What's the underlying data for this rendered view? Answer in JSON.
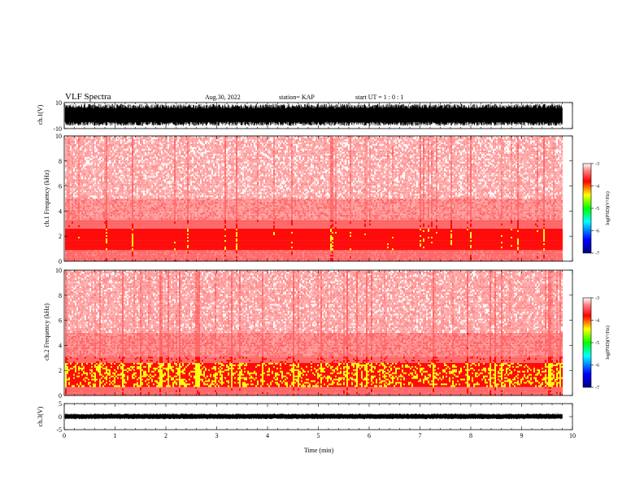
{
  "header": {
    "title": "VLF Spectra",
    "date": "Aug.30, 2022",
    "station": "station= KAP",
    "start": "start UT =  1 : 0 : 1"
  },
  "colors": {
    "low_power": "#0000ff",
    "mid_power": "#00ff00",
    "yellow": "#ffff00",
    "high_power": "#ff0000",
    "background": "#ffffff",
    "waveform": "#000000"
  },
  "chart_data": [
    {
      "type": "line",
      "panel": "ch1-waveform",
      "ylabel": "ch.1(V)",
      "ylim": [
        -10,
        10
      ],
      "yticks": [
        "10",
        "-10"
      ],
      "xlim": [
        0,
        10
      ],
      "trace_end": 9.8,
      "description_values": {
        "amplitude_envelope_V": [
          -8,
          9
        ]
      }
    },
    {
      "type": "heatmap",
      "panel": "ch1-spectrogram",
      "ylabel": "ch.1 Frequency (kHz)",
      "ylim": [
        0,
        10
      ],
      "yticks": [
        "0",
        "2",
        "4",
        "6",
        "8",
        "10"
      ],
      "xlim": [
        0,
        10
      ],
      "trace_end": 9.8,
      "intensity_bands_kHz": [
        {
          "from": 0.0,
          "to": 0.9,
          "level": 0.35
        },
        {
          "from": 0.9,
          "to": 2.6,
          "level": 0.75
        },
        {
          "from": 2.6,
          "to": 3.3,
          "level": 0.45
        },
        {
          "from": 3.3,
          "to": 5.0,
          "level": 0.22
        },
        {
          "from": 5.0,
          "to": 10.0,
          "level": 0.1
        }
      ],
      "colorbar": {
        "label": "log(PSD)(V²/Hz)",
        "ticks": [
          "-3",
          "-4",
          "-5",
          "-6",
          "-7"
        ],
        "range": [
          -7,
          -3
        ]
      }
    },
    {
      "type": "heatmap",
      "panel": "ch2-spectrogram",
      "ylabel": "ch.2 Frequency (kHz)",
      "ylim": [
        0,
        10
      ],
      "yticks": [
        "0",
        "2",
        "4",
        "6",
        "8",
        "10"
      ],
      "xlim": [
        0,
        10
      ],
      "trace_end": 9.8,
      "intensity_bands_kHz": [
        {
          "from": 0.0,
          "to": 0.7,
          "level": 0.4
        },
        {
          "from": 0.7,
          "to": 2.6,
          "level": 0.9
        },
        {
          "from": 2.6,
          "to": 3.1,
          "level": 0.5
        },
        {
          "from": 3.1,
          "to": 5.0,
          "level": 0.25
        },
        {
          "from": 5.0,
          "to": 10.0,
          "level": 0.12
        }
      ],
      "colorbar": {
        "label": "log(PSD)(V²/Hz)",
        "ticks": [
          "-3",
          "-4",
          "-5",
          "-6",
          "-7"
        ],
        "range": [
          -7,
          -3
        ]
      }
    },
    {
      "type": "line",
      "panel": "ch3-waveform",
      "ylabel": "ch.3(V)",
      "ylim": [
        -5,
        5
      ],
      "yticks": [
        "5",
        "0",
        "-5"
      ],
      "xlim": [
        0,
        10
      ],
      "trace_end": 9.8,
      "xlabel": "Time (min)",
      "xticks": [
        "0",
        "1",
        "2",
        "3",
        "4",
        "5",
        "6",
        "7",
        "8",
        "9",
        "10"
      ],
      "description_values": {
        "amplitude_envelope_V": [
          -1,
          1.2
        ]
      }
    }
  ]
}
